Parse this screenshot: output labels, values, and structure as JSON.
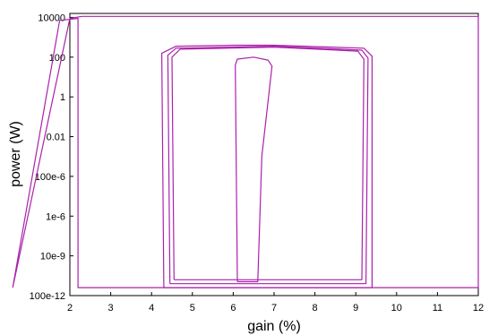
{
  "chart_data": {
    "type": "line",
    "xlabel": "gain (%)",
    "ylabel": "power (W)",
    "xlim": [
      2,
      12
    ],
    "ylim_log10": [
      -10,
      4.2
    ],
    "y_scale": "log",
    "x_ticks": [
      2,
      3,
      4,
      5,
      6,
      7,
      8,
      9,
      10,
      11,
      12
    ],
    "x_tick_labels": [
      "2",
      "3",
      "4",
      "5",
      "6",
      "7",
      "8",
      "9",
      "10",
      "11",
      "12"
    ],
    "y_ticks_log10": [
      -10,
      -8,
      -6,
      -4,
      -2,
      0,
      2,
      4
    ],
    "y_tick_labels": [
      "100e-12",
      "10e-9",
      "1e-6",
      "100e-6",
      "0.01",
      "1",
      "100",
      "10000"
    ],
    "grid": false,
    "line_color": "#aa22aa",
    "series": [
      {
        "curve": "wide outer loop",
        "x": [
          0.6,
          1.75,
          2.2,
          2.2,
          12,
          12,
          2.3,
          2.0,
          0.6
        ],
        "log10_y": [
          -9.6,
          3.85,
          3.95,
          -9.6,
          -9.6,
          4.05,
          4.05,
          3.95,
          -9.6
        ]
      },
      {
        "curve": "outer loop",
        "x": [
          4.3,
          4.25,
          4.6,
          6.0,
          7.0,
          9.2,
          9.4,
          9.4,
          9.2,
          4.3
        ],
        "log10_y": [
          -9.6,
          2.2,
          2.55,
          2.6,
          2.6,
          2.45,
          2.05,
          -9.6,
          -9.6,
          -9.6
        ]
      },
      {
        "curve": "middle loop",
        "x": [
          4.45,
          4.4,
          4.6,
          7.0,
          9.15,
          9.3,
          9.25,
          4.45
        ],
        "log10_y": [
          -9.4,
          2.1,
          2.45,
          2.55,
          2.35,
          1.95,
          -9.4,
          -9.4
        ]
      },
      {
        "curve": "inner loop",
        "x": [
          4.55,
          4.5,
          4.7,
          7.0,
          9.05,
          9.2,
          9.15,
          4.55
        ],
        "log10_y": [
          -9.2,
          2.0,
          2.4,
          2.5,
          2.3,
          1.9,
          -9.2,
          -9.2
        ]
      },
      {
        "curve": "central lobe",
        "x": [
          6.1,
          6.05,
          6.1,
          6.5,
          6.85,
          6.95,
          6.7,
          6.6,
          6.1
        ],
        "log10_y": [
          -9.3,
          1.6,
          1.9,
          2.0,
          1.85,
          1.55,
          -3.0,
          -9.3,
          -9.3
        ]
      }
    ]
  }
}
